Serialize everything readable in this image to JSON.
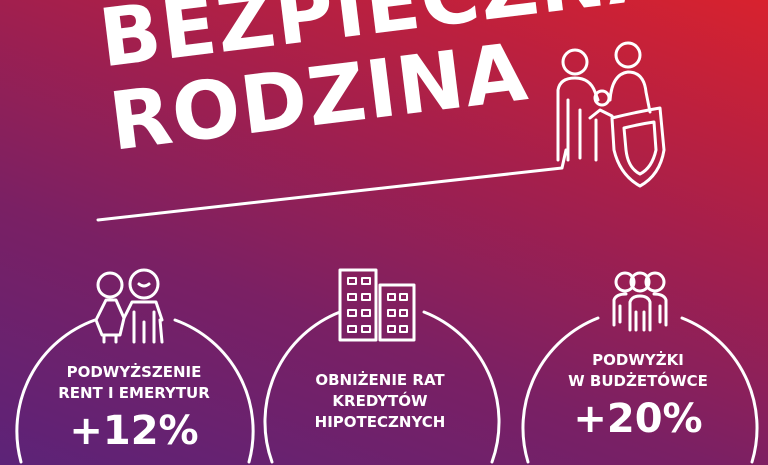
{
  "title": {
    "line1": "BEZPIECZNA",
    "line2": "RODZINA",
    "icon": "family-shield-icon"
  },
  "items": [
    {
      "label1": "PODWYŻSZENIE",
      "label2": "RENT I EMERYTUR",
      "value": "+12%",
      "icon": "elderly-couple-icon"
    },
    {
      "label1": "OBNIŻENIE RAT",
      "label2": "KREDYTÓW",
      "label3": "HIPOTECZNYCH",
      "icon": "buildings-icon"
    },
    {
      "label1": "PODWYŻKI",
      "label2": "W BUDŻETÓWCE",
      "value": "+20%",
      "icon": "people-group-icon"
    }
  ],
  "colors": {
    "top_right": "#d8222e",
    "bottom_left": "#5c2378",
    "foreground": "#ffffff"
  }
}
